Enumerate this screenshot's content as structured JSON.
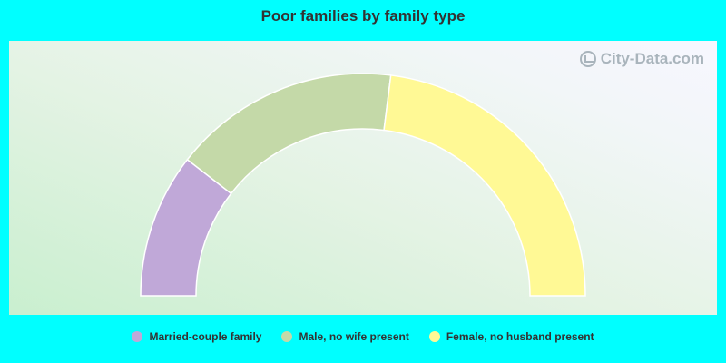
{
  "chart_data": {
    "type": "pie",
    "title": "Poor families by family type",
    "style": "semicircle-donut",
    "categories": [
      "Married-couple family",
      "Male, no wife present",
      "Female, no husband present"
    ],
    "values": [
      21,
      33,
      46
    ],
    "colors": [
      "#c0a8d8",
      "#c4d9a8",
      "#fff995"
    ],
    "legend_position": "bottom"
  },
  "watermark": {
    "text": "City-Data.com",
    "icon": "chart-circle-icon"
  },
  "colors": {
    "background": "#00ffff",
    "title": "#333333"
  }
}
